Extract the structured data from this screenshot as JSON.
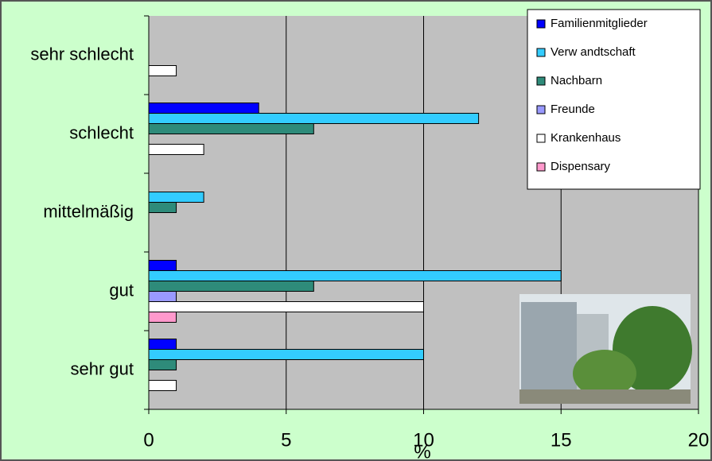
{
  "chart_data": {
    "type": "hbar",
    "categories": [
      "sehr schlecht",
      "schlecht",
      "mittelmäßig",
      "gut",
      "sehr gut"
    ],
    "series": [
      {
        "name": "Familienmitglieder",
        "color": "#0000ff",
        "values": [
          null,
          4,
          null,
          1,
          1
        ]
      },
      {
        "name": "Verw andtschaft",
        "color": "#33ccff",
        "values": [
          null,
          12,
          2,
          15,
          10
        ]
      },
      {
        "name": "Nachbarn",
        "color": "#2e8b7a",
        "values": [
          null,
          6,
          1,
          6,
          1
        ]
      },
      {
        "name": "Freunde",
        "color": "#9999ff",
        "values": [
          null,
          null,
          null,
          1,
          null
        ]
      },
      {
        "name": "Krankenhaus",
        "color": "#ffffff",
        "values": [
          1,
          2,
          null,
          10,
          1
        ]
      },
      {
        "name": "Dispensary",
        "color": "#ff99cc",
        "values": [
          null,
          null,
          null,
          1,
          null
        ]
      }
    ],
    "xlabel": "%",
    "xlim": [
      0,
      20
    ],
    "xticks": [
      0,
      5,
      10,
      15,
      20
    ],
    "grid": true
  }
}
